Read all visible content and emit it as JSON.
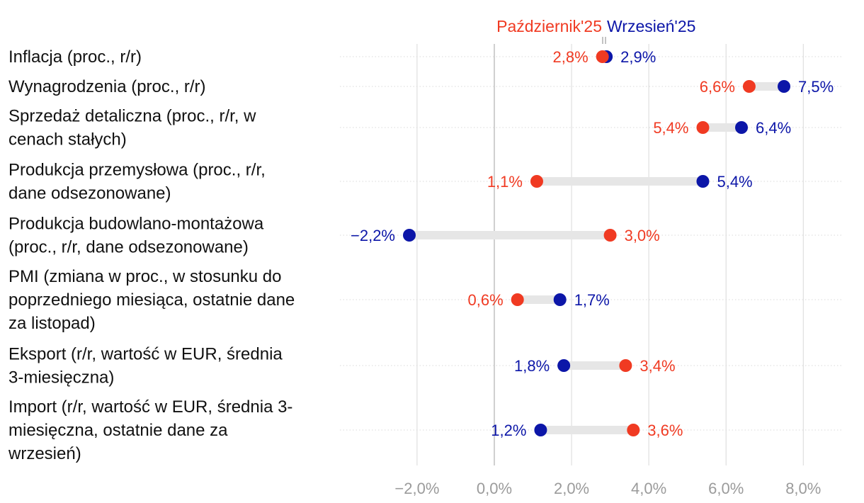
{
  "chart_data": {
    "type": "dumbbell",
    "title": "",
    "xlabel": "",
    "ylabel": "",
    "xlim": [
      -2.7,
      8.2
    ],
    "x_ticks": [
      -2.0,
      0.0,
      2.0,
      4.0,
      6.0,
      8.0
    ],
    "x_tick_labels": [
      "−2,0%",
      "0,0%",
      "2,0%",
      "4,0%",
      "6,0%",
      "8,0%"
    ],
    "grid": true,
    "legend_position": "top",
    "series": [
      {
        "name": "Październik'25",
        "color": "#f03a22"
      },
      {
        "name": "Wrzesień'25",
        "color": "#0c16a8"
      }
    ],
    "categories": [
      {
        "label_lines": [
          "Inflacja (proc., r/r)"
        ],
        "oct": 2.8,
        "sep": 2.9,
        "oct_label": "2,8%",
        "sep_label": "2,9%"
      },
      {
        "label_lines": [
          "Wynagrodzenia (proc., r/r)"
        ],
        "oct": 6.6,
        "sep": 7.5,
        "oct_label": "6,6%",
        "sep_label": "7,5%"
      },
      {
        "label_lines": [
          "Sprzedaż detaliczna (proc., r/r, w",
          "cenach stałych)"
        ],
        "oct": 5.4,
        "sep": 6.4,
        "oct_label": "5,4%",
        "sep_label": "6,4%"
      },
      {
        "label_lines": [
          "Produkcja przemysłowa (proc., r/r,",
          "dane odsezonowane)"
        ],
        "oct": 1.1,
        "sep": 5.4,
        "oct_label": "1,1%",
        "sep_label": "5,4%"
      },
      {
        "label_lines": [
          "Produkcja budowlano-montażowa",
          "(proc., r/r, dane odsezonowane)"
        ],
        "oct": 3.0,
        "sep": -2.2,
        "oct_label": "3,0%",
        "sep_label": "−2,2%"
      },
      {
        "label_lines": [
          "PMI (zmiana w proc., w stosunku do",
          "poprzedniego miesiąca, ostatnie dane",
          "za listopad)"
        ],
        "oct": 0.6,
        "sep": 1.7,
        "oct_label": "0,6%",
        "sep_label": "1,7%"
      },
      {
        "label_lines": [
          "Eksport (r/r, wartość w EUR, średnia",
          "3-miesięczna)"
        ],
        "oct": 3.4,
        "sep": 1.8,
        "oct_label": "3,4%",
        "sep_label": "1,8%"
      },
      {
        "label_lines": [
          "Import (r/r, wartość w EUR, średnia 3-",
          "miesięczna, ostatnie dane za",
          "wrzesień)"
        ],
        "oct": 3.6,
        "sep": 1.2,
        "oct_label": "3,6%",
        "sep_label": "1,2%"
      }
    ],
    "connector_color": "#e6e6e6",
    "zero_line_color": "#c4c4c4",
    "grid_color": "#d8d8d8"
  }
}
